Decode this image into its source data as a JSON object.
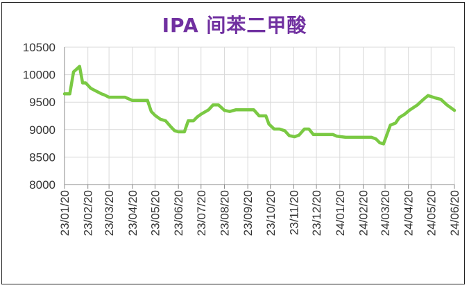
{
  "chart_data": {
    "type": "line",
    "title": "IPA 间苯二甲酸",
    "xlabel": "",
    "ylabel": "",
    "ylim": [
      8000,
      10500
    ],
    "yticks": [
      8000,
      8500,
      9000,
      9500,
      10000,
      10500
    ],
    "xtick_labels": [
      "23/01/20",
      "23/02/20",
      "23/03/20",
      "23/04/20",
      "23/05/20",
      "23/06/20",
      "23/07/20",
      "23/08/20",
      "23/09/20",
      "23/10/20",
      "23/11/20",
      "23/12/20",
      "24/01/20",
      "24/02/20",
      "24/03/20",
      "24/04/20",
      "24/05/20",
      "24/06/20"
    ],
    "grid": true,
    "line_color": "#7ac943",
    "series": [
      {
        "x": [
          "2023-01-20",
          "2023-01-27",
          "2023-02-01",
          "2023-02-05",
          "2023-02-09",
          "2023-02-13",
          "2023-02-17",
          "2023-02-24",
          "2023-03-03",
          "2023-03-10",
          "2023-03-14",
          "2023-03-20",
          "2023-03-31",
          "2023-04-10",
          "2023-04-20",
          "2023-04-24",
          "2023-05-10",
          "2023-05-15",
          "2023-05-20",
          "2023-05-27",
          "2023-06-03",
          "2023-06-10",
          "2023-06-15",
          "2023-06-20",
          "2023-06-28",
          "2023-07-03",
          "2023-07-10",
          "2023-07-15",
          "2023-07-20",
          "2023-07-30",
          "2023-08-05",
          "2023-08-12",
          "2023-08-20",
          "2023-08-27",
          "2023-09-04",
          "2023-09-16",
          "2023-09-28",
          "2023-10-05",
          "2023-10-14",
          "2023-10-18",
          "2023-10-25",
          "2023-11-01",
          "2023-11-08",
          "2023-11-14",
          "2023-11-21",
          "2023-11-27",
          "2023-12-04",
          "2023-12-10",
          "2023-12-16",
          "2023-12-26",
          "2024-01-11",
          "2024-01-16",
          "2024-01-28",
          "2024-02-15",
          "2024-02-28",
          "2024-03-02",
          "2024-03-08",
          "2024-03-13",
          "2024-03-18",
          "2024-03-27",
          "2024-04-03",
          "2024-04-08",
          "2024-04-15",
          "2024-04-21",
          "2024-05-02",
          "2024-05-10",
          "2024-05-16",
          "2024-05-25",
          "2024-06-02",
          "2024-06-10",
          "2024-06-20"
        ],
        "values": [
          9650,
          9650,
          10050,
          10100,
          10150,
          9850,
          9850,
          9750,
          9700,
          9650,
          9630,
          9590,
          9590,
          9590,
          9530,
          9530,
          9530,
          9330,
          9260,
          9190,
          9160,
          9050,
          8980,
          8960,
          8960,
          9160,
          9160,
          9230,
          9280,
          9360,
          9450,
          9450,
          9350,
          9330,
          9360,
          9360,
          9360,
          9250,
          9250,
          9100,
          9010,
          9010,
          8980,
          8890,
          8870,
          8900,
          9010,
          9010,
          8910,
          8910,
          8910,
          8880,
          8860,
          8860,
          8860,
          8860,
          8830,
          8760,
          8740,
          9080,
          9120,
          9220,
          9280,
          9350,
          9450,
          9550,
          9620,
          9580,
          9550,
          9450,
          9350
        ]
      }
    ]
  }
}
